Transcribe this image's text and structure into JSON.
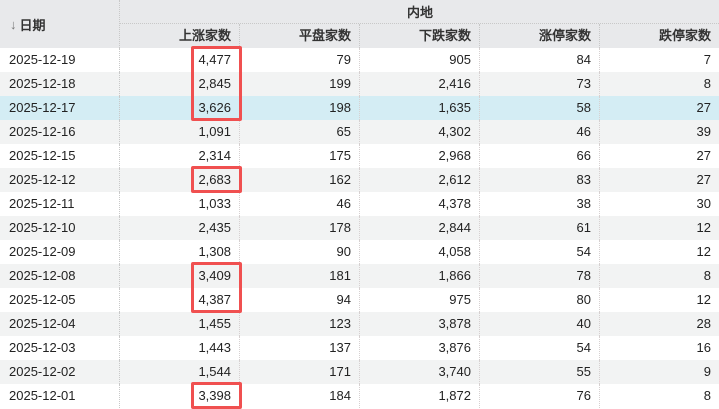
{
  "header": {
    "date_label": "日期",
    "sort_icon": "arrow-down-icon",
    "group_label": "内地",
    "columns": [
      "上涨家数",
      "平盘家数",
      "下跌家数",
      "涨停家数",
      "跌停家数"
    ]
  },
  "colors": {
    "highlight_box": "#f05050",
    "selected_row": "#d4edf4",
    "header_bg": "#e8e9eb"
  },
  "selected_row_date": "2025-12-17",
  "rows": [
    {
      "date": "2025-12-19",
      "up": "4,477",
      "flat": "79",
      "down": "905",
      "limit_up": "84",
      "limit_down": "7",
      "boxed": true
    },
    {
      "date": "2025-12-18",
      "up": "2,845",
      "flat": "199",
      "down": "2,416",
      "limit_up": "73",
      "limit_down": "8",
      "boxed": true
    },
    {
      "date": "2025-12-17",
      "up": "3,626",
      "flat": "198",
      "down": "1,635",
      "limit_up": "58",
      "limit_down": "27",
      "boxed": true
    },
    {
      "date": "2025-12-16",
      "up": "1,091",
      "flat": "65",
      "down": "4,302",
      "limit_up": "46",
      "limit_down": "39",
      "boxed": false
    },
    {
      "date": "2025-12-15",
      "up": "2,314",
      "flat": "175",
      "down": "2,968",
      "limit_up": "66",
      "limit_down": "27",
      "boxed": false
    },
    {
      "date": "2025-12-12",
      "up": "2,683",
      "flat": "162",
      "down": "2,612",
      "limit_up": "83",
      "limit_down": "27",
      "boxed": true
    },
    {
      "date": "2025-12-11",
      "up": "1,033",
      "flat": "46",
      "down": "4,378",
      "limit_up": "38",
      "limit_down": "30",
      "boxed": false
    },
    {
      "date": "2025-12-10",
      "up": "2,435",
      "flat": "178",
      "down": "2,844",
      "limit_up": "61",
      "limit_down": "12",
      "boxed": false
    },
    {
      "date": "2025-12-09",
      "up": "1,308",
      "flat": "90",
      "down": "4,058",
      "limit_up": "54",
      "limit_down": "12",
      "boxed": false
    },
    {
      "date": "2025-12-08",
      "up": "3,409",
      "flat": "181",
      "down": "1,866",
      "limit_up": "78",
      "limit_down": "8",
      "boxed": true
    },
    {
      "date": "2025-12-05",
      "up": "4,387",
      "flat": "94",
      "down": "975",
      "limit_up": "80",
      "limit_down": "12",
      "boxed": true
    },
    {
      "date": "2025-12-04",
      "up": "1,455",
      "flat": "123",
      "down": "3,878",
      "limit_up": "40",
      "limit_down": "28",
      "boxed": false
    },
    {
      "date": "2025-12-03",
      "up": "1,443",
      "flat": "137",
      "down": "3,876",
      "limit_up": "54",
      "limit_down": "16",
      "boxed": false
    },
    {
      "date": "2025-12-02",
      "up": "1,544",
      "flat": "171",
      "down": "3,740",
      "limit_up": "55",
      "limit_down": "9",
      "boxed": false
    },
    {
      "date": "2025-12-01",
      "up": "3,398",
      "flat": "184",
      "down": "1,872",
      "limit_up": "76",
      "limit_down": "8",
      "boxed": true
    }
  ]
}
